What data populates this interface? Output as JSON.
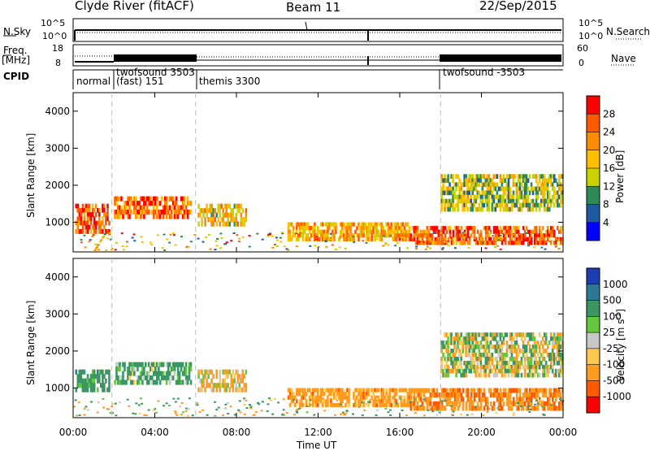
{
  "header": {
    "station": "Clyde River (fitACF)",
    "beam": "Beam 11",
    "date": "22/Sep/2015"
  },
  "side_labels": {
    "nsky": "N.Sky",
    "freq_line1": "Freq.",
    "freq_line2": "[MHz]",
    "cpid": "CPID",
    "nsearch": "N.Search",
    "nave": "Nave"
  },
  "small_axes": {
    "noise_left_ticks": [
      "10^5",
      "10^0"
    ],
    "noise_right_ticks": [
      "10^5",
      "10^0"
    ],
    "freq_left_ticks": [
      "18",
      "8"
    ],
    "nave_right_ticks": [
      "60",
      "0"
    ]
  },
  "cpid_segments": [
    {
      "name": "normal",
      "start_h": 0.0
    },
    {
      "name": "twofsound 3503",
      "start_h": 1.9
    },
    {
      "name": "(fast) 151",
      "start_h": 1.9
    },
    {
      "name": "themis 3300",
      "start_h": 6.0
    },
    {
      "name": "twofsound -3503",
      "start_h": 18.0
    }
  ],
  "cpid_labels": {
    "seg1": "normal",
    "seg2_line1": "twofsound 3503",
    "seg2_line2": "(fast) 151",
    "seg3": "themis 3300",
    "seg4": "twofsound -3503"
  },
  "colorbars": {
    "power": {
      "label": "Power [dB]",
      "ticks": [
        "28",
        "24",
        "20",
        "16",
        "12",
        "8",
        "4"
      ],
      "colors": [
        "#ff0000",
        "#ff5a00",
        "#ff8c00",
        "#ffbf00",
        "#c8d200",
        "#2e8b57",
        "#1f5aa0",
        "#0000ff"
      ]
    },
    "velocity": {
      "label": "Velocity [m s",
      "label_sup": "-1",
      "label_end": "]",
      "ticks": [
        "1000",
        "500",
        "100",
        "25",
        "-25",
        "-100",
        "-500",
        "-1000"
      ],
      "colors": [
        "#1e3cb4",
        "#2d7896",
        "#3c9664",
        "#64c83c",
        "#c8c8c8",
        "#ffc850",
        "#ff9b1e",
        "#ff5a00",
        "#ff0000"
      ]
    }
  },
  "chart_data": [
    {
      "type": "heatmap",
      "panel": "power",
      "ylabel": "Slant Range [km]",
      "yticks": [
        "1000",
        "2000",
        "3000",
        "4000"
      ],
      "ylim": [
        200,
        4500
      ],
      "xlim_h": [
        0,
        24
      ],
      "regions": [
        {
          "x": [
            0.1,
            1.8
          ],
          "y": [
            700,
            1500
          ],
          "value": 26
        },
        {
          "x": [
            2.0,
            5.8
          ],
          "y": [
            1100,
            1700
          ],
          "value": 24
        },
        {
          "x": [
            6.1,
            8.5
          ],
          "y": [
            900,
            1500
          ],
          "value": 18
        },
        {
          "x": [
            10.5,
            16.5
          ],
          "y": [
            500,
            1000
          ],
          "value": 20
        },
        {
          "x": [
            16.5,
            24.0
          ],
          "y": [
            400,
            900
          ],
          "value": 26
        },
        {
          "x": [
            18.0,
            24.0
          ],
          "y": [
            1300,
            2300
          ],
          "value": 14
        }
      ]
    },
    {
      "type": "heatmap",
      "panel": "velocity",
      "ylabel": "Slant Range [km]",
      "yticks": [
        "1000",
        "2000",
        "3000",
        "4000"
      ],
      "ylim": [
        200,
        4500
      ],
      "xlim_h": [
        0,
        24
      ],
      "regions": [
        {
          "x": [
            0.1,
            1.8
          ],
          "y": [
            900,
            1500
          ],
          "value": 300
        },
        {
          "x": [
            2.0,
            5.8
          ],
          "y": [
            1100,
            1700
          ],
          "value": 200
        },
        {
          "x": [
            6.1,
            8.5
          ],
          "y": [
            900,
            1500
          ],
          "value": -150
        },
        {
          "x": [
            10.5,
            16.5
          ],
          "y": [
            500,
            1000
          ],
          "value": -300
        },
        {
          "x": [
            16.5,
            24.0
          ],
          "y": [
            400,
            1000
          ],
          "value": -400
        },
        {
          "x": [
            18.0,
            24.0
          ],
          "y": [
            1300,
            2500
          ],
          "value": 0
        }
      ]
    }
  ],
  "x_axis": {
    "ticks": [
      "00:00",
      "04:00",
      "08:00",
      "12:00",
      "16:00",
      "20:00",
      "00:00"
    ],
    "label": "Time UT"
  }
}
